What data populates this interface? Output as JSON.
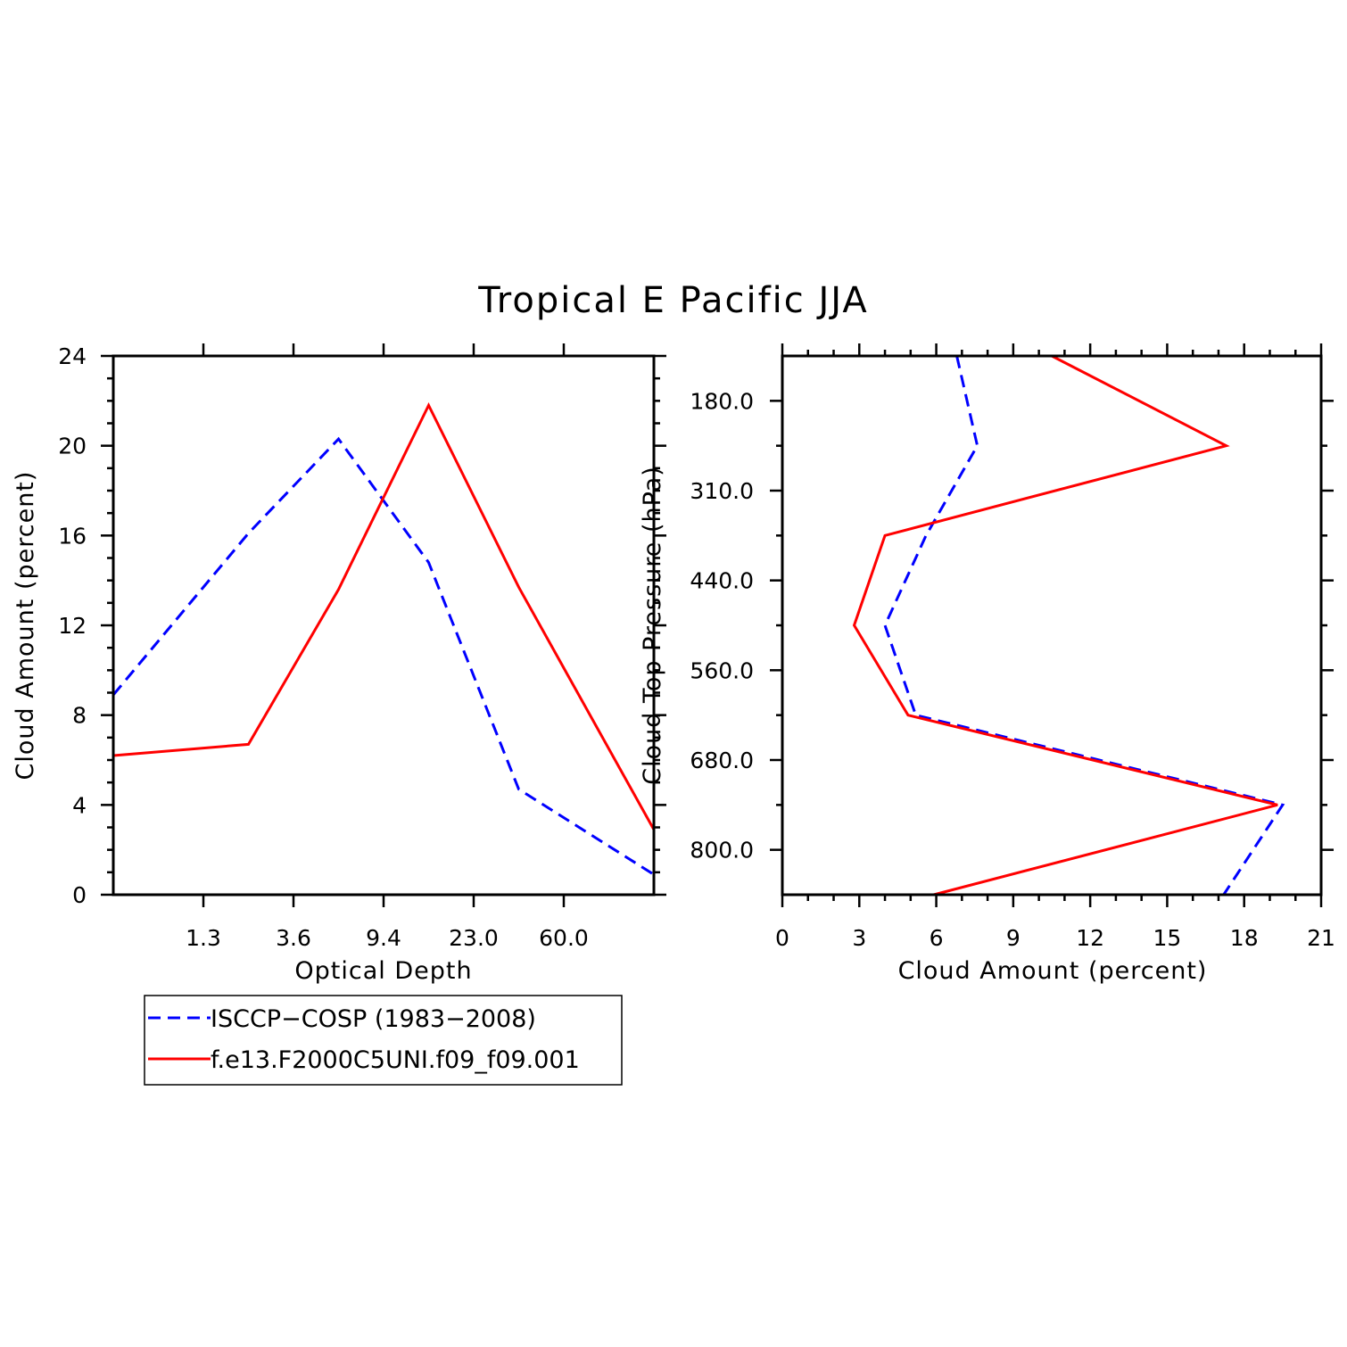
{
  "title": "Tropical E Pacific JJA",
  "colors": {
    "obs": "#0000ff",
    "model": "#ff0000",
    "axis": "#000000"
  },
  "legend": {
    "entries": [
      {
        "label": "ISCCP−COSP (1983−2008)",
        "color": "#0000ff",
        "style": "dashed"
      },
      {
        "label": "f.e13.F2000C5UNI.f09_f09.001",
        "color": "#ff0000",
        "style": "solid"
      }
    ]
  },
  "chart_data": [
    {
      "type": "line",
      "xlabel": "Optical Depth",
      "ylabel": "Cloud Amount (percent)",
      "x_tick_labels": [
        "1.3",
        "3.6",
        "9.4",
        "23.0",
        "60.0"
      ],
      "x_bins": 6,
      "ylim": [
        0,
        24
      ],
      "y_ticks": [
        0,
        4,
        8,
        12,
        16,
        20,
        24
      ],
      "series": [
        {
          "name": "ISCCP−COSP (1983−2008)",
          "values": [
            8.9,
            16.1,
            20.3,
            14.8,
            4.7,
            0.9
          ]
        },
        {
          "name": "f.e13.F2000C5UNI.f09_f09.001",
          "values": [
            6.2,
            6.7,
            13.6,
            21.8,
            13.7,
            2.9
          ]
        }
      ]
    },
    {
      "type": "line",
      "orientation": "vertical",
      "xlabel": "Cloud Amount (percent)",
      "ylabel": "Cloud Top Pressure (hPa)",
      "xlim": [
        0,
        21
      ],
      "x_ticks": [
        0,
        3,
        6,
        9,
        12,
        15,
        18,
        21
      ],
      "y_tick_labels": [
        "180.0",
        "310.0",
        "440.0",
        "560.0",
        "680.0",
        "800.0"
      ],
      "y_range_bins": [
        0,
        6
      ],
      "series": [
        {
          "name": "ISCCP−COSP (1983−2008)",
          "levels": [
            0,
            1,
            2,
            3,
            4,
            5,
            6
          ],
          "values": [
            6.8,
            7.6,
            5.6,
            4.0,
            5.2,
            19.5,
            17.2
          ]
        },
        {
          "name": "f.e13.F2000C5UNI.f09_f09.001",
          "levels": [
            0,
            1,
            2,
            3,
            4,
            5,
            6
          ],
          "values": [
            10.5,
            17.3,
            4.0,
            2.8,
            4.9,
            19.3,
            5.9
          ]
        }
      ]
    }
  ]
}
